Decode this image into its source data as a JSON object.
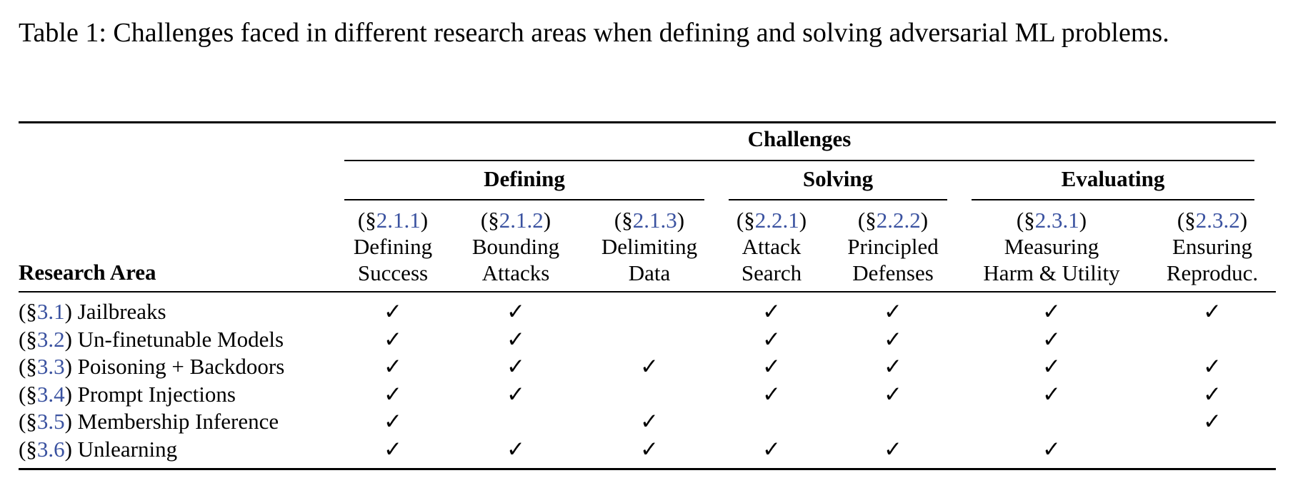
{
  "caption": {
    "label": "Table 1:",
    "text": "Challenges faced in different research areas when defining and solving adversarial ML problems."
  },
  "header": {
    "top": "Challenges",
    "row_header": "Research Area",
    "groups": [
      {
        "label": "Defining"
      },
      {
        "label": "Solving"
      },
      {
        "label": "Evaluating"
      }
    ],
    "columns": [
      {
        "ref": "2.1.1",
        "line1": "Defining",
        "line2": "Success"
      },
      {
        "ref": "2.1.2",
        "line1": "Bounding",
        "line2": "Attacks"
      },
      {
        "ref": "2.1.3",
        "line1": "Delimiting",
        "line2": "Data"
      },
      {
        "ref": "2.2.1",
        "line1": "Attack",
        "line2": "Search"
      },
      {
        "ref": "2.2.2",
        "line1": "Principled",
        "line2": "Defenses"
      },
      {
        "ref": "2.3.1",
        "line1": "Measuring",
        "line2": "Harm & Utility"
      },
      {
        "ref": "2.3.2",
        "line1": "Ensuring",
        "line2": "Reproduc."
      }
    ]
  },
  "check_glyph": "✓",
  "rows": [
    {
      "ref": "3.1",
      "label": "Jailbreaks",
      "checks": [
        true,
        true,
        false,
        true,
        true,
        true,
        true
      ]
    },
    {
      "ref": "3.2",
      "label": "Un-finetunable Models",
      "checks": [
        true,
        true,
        false,
        true,
        true,
        true,
        false
      ]
    },
    {
      "ref": "3.3",
      "label": "Poisoning + Backdoors",
      "checks": [
        true,
        true,
        true,
        true,
        true,
        true,
        true
      ]
    },
    {
      "ref": "3.4",
      "label": "Prompt Injections",
      "checks": [
        true,
        true,
        false,
        true,
        true,
        true,
        true
      ]
    },
    {
      "ref": "3.5",
      "label": "Membership Inference",
      "checks": [
        true,
        false,
        true,
        false,
        false,
        false,
        true
      ]
    },
    {
      "ref": "3.6",
      "label": "Unlearning",
      "checks": [
        true,
        true,
        true,
        true,
        true,
        true,
        false
      ]
    }
  ]
}
